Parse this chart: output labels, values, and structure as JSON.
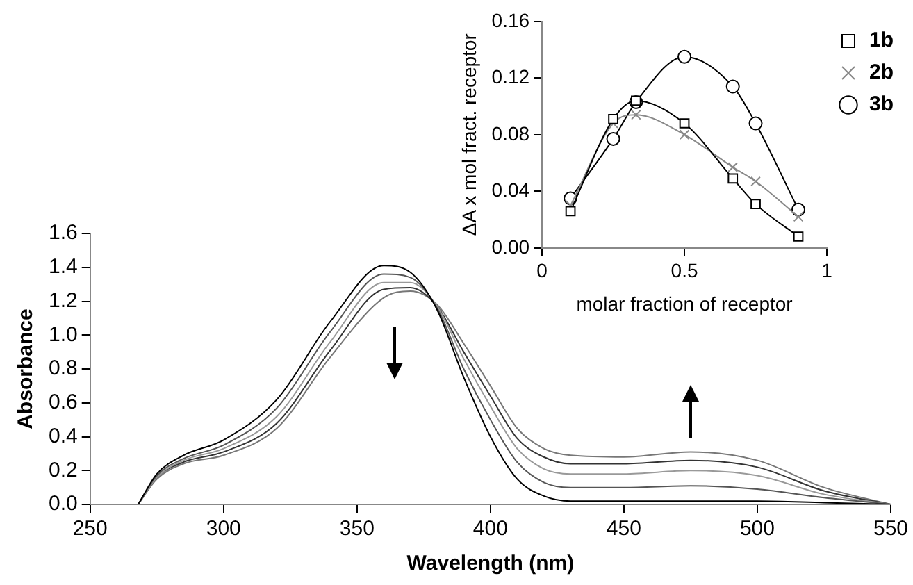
{
  "chart_data": [
    {
      "type": "line",
      "xlabel": "Wavelength (nm)",
      "ylabel": "Absorbance",
      "xlim": [
        250,
        550
      ],
      "xticks": [
        250,
        300,
        350,
        400,
        450,
        500,
        550
      ],
      "ylim": [
        0,
        1.6
      ],
      "yticks": [
        {
          "value": 0,
          "label": "0.0"
        },
        {
          "value": 0.2,
          "label": "0.2"
        },
        {
          "value": 0.4,
          "label": "0.4"
        },
        {
          "value": 0.6,
          "label": "0.6"
        },
        {
          "value": 0.8,
          "label": "0.8"
        },
        {
          "value": 1,
          "label": "1.0"
        },
        {
          "value": 1.2,
          "label": "1.2"
        },
        {
          "value": 1.4,
          "label": "1.4"
        },
        {
          "value": 1.6,
          "label": "1.6"
        }
      ],
      "grid": false,
      "legend": false,
      "marker": "none",
      "line_style": "solid",
      "x": [
        268,
        275,
        285,
        300,
        320,
        340,
        360,
        370,
        380,
        390,
        400,
        410,
        420,
        430,
        450,
        475,
        500,
        525,
        550
      ],
      "series": [
        {
          "color": "#000000",
          "values": [
            0,
            0.18,
            0.29,
            0.38,
            0.62,
            1.08,
            1.41,
            1.37,
            1.15,
            0.75,
            0.4,
            0.15,
            0.05,
            0.02,
            0.02,
            0.02,
            0.02,
            0.01,
            0
          ]
        },
        {
          "color": "#555555",
          "values": [
            0,
            0.17,
            0.27,
            0.35,
            0.57,
            1.02,
            1.36,
            1.34,
            1.16,
            0.8,
            0.5,
            0.25,
            0.13,
            0.1,
            0.1,
            0.11,
            0.09,
            0.04,
            0
          ]
        },
        {
          "color": "#999999",
          "values": [
            0,
            0.16,
            0.26,
            0.33,
            0.52,
            0.96,
            1.31,
            1.31,
            1.17,
            0.86,
            0.58,
            0.33,
            0.21,
            0.18,
            0.18,
            0.2,
            0.17,
            0.06,
            0
          ]
        },
        {
          "color": "#333333",
          "values": [
            0,
            0.16,
            0.25,
            0.31,
            0.48,
            0.91,
            1.27,
            1.28,
            1.17,
            0.9,
            0.64,
            0.39,
            0.28,
            0.24,
            0.24,
            0.26,
            0.22,
            0.08,
            0
          ]
        },
        {
          "color": "#777777",
          "values": [
            0,
            0.15,
            0.24,
            0.29,
            0.45,
            0.87,
            1.22,
            1.26,
            1.18,
            0.95,
            0.7,
            0.45,
            0.33,
            0.29,
            0.28,
            0.31,
            0.26,
            0.1,
            0
          ]
        }
      ]
    },
    {
      "type": "line",
      "xlabel": "molar fraction of receptor",
      "ylabel": "ΔA x mol fract. receptor",
      "xlim": [
        0,
        1
      ],
      "xticks": [
        0,
        0.5,
        1
      ],
      "ylim": [
        0,
        0.16
      ],
      "yticks": [
        {
          "value": 0,
          "label": "0.00"
        },
        {
          "value": 0.04,
          "label": "0.04"
        },
        {
          "value": 0.08,
          "label": "0.08"
        },
        {
          "value": 0.12,
          "label": "0.12"
        },
        {
          "value": 0.16,
          "label": "0.16"
        }
      ],
      "grid": false,
      "legend": "top right",
      "line_style": "solid",
      "x": [
        0.1,
        0.25,
        0.33,
        0.5,
        0.67,
        0.75,
        0.9
      ],
      "series": [
        {
          "name": "1b",
          "color": "#000000",
          "marker": "square",
          "values": [
            0.026,
            0.091,
            0.104,
            0.088,
            0.049,
            0.031,
            0.008
          ]
        },
        {
          "name": "2b",
          "color": "#888888",
          "marker": "cross",
          "values": [
            0.03,
            0.088,
            0.094,
            0.08,
            0.057,
            0.047,
            0.022
          ]
        },
        {
          "name": "3b",
          "color": "#000000",
          "marker": "circle",
          "values": [
            0.035,
            0.077,
            0.103,
            0.135,
            0.114,
            0.088,
            0.027
          ]
        }
      ]
    }
  ]
}
